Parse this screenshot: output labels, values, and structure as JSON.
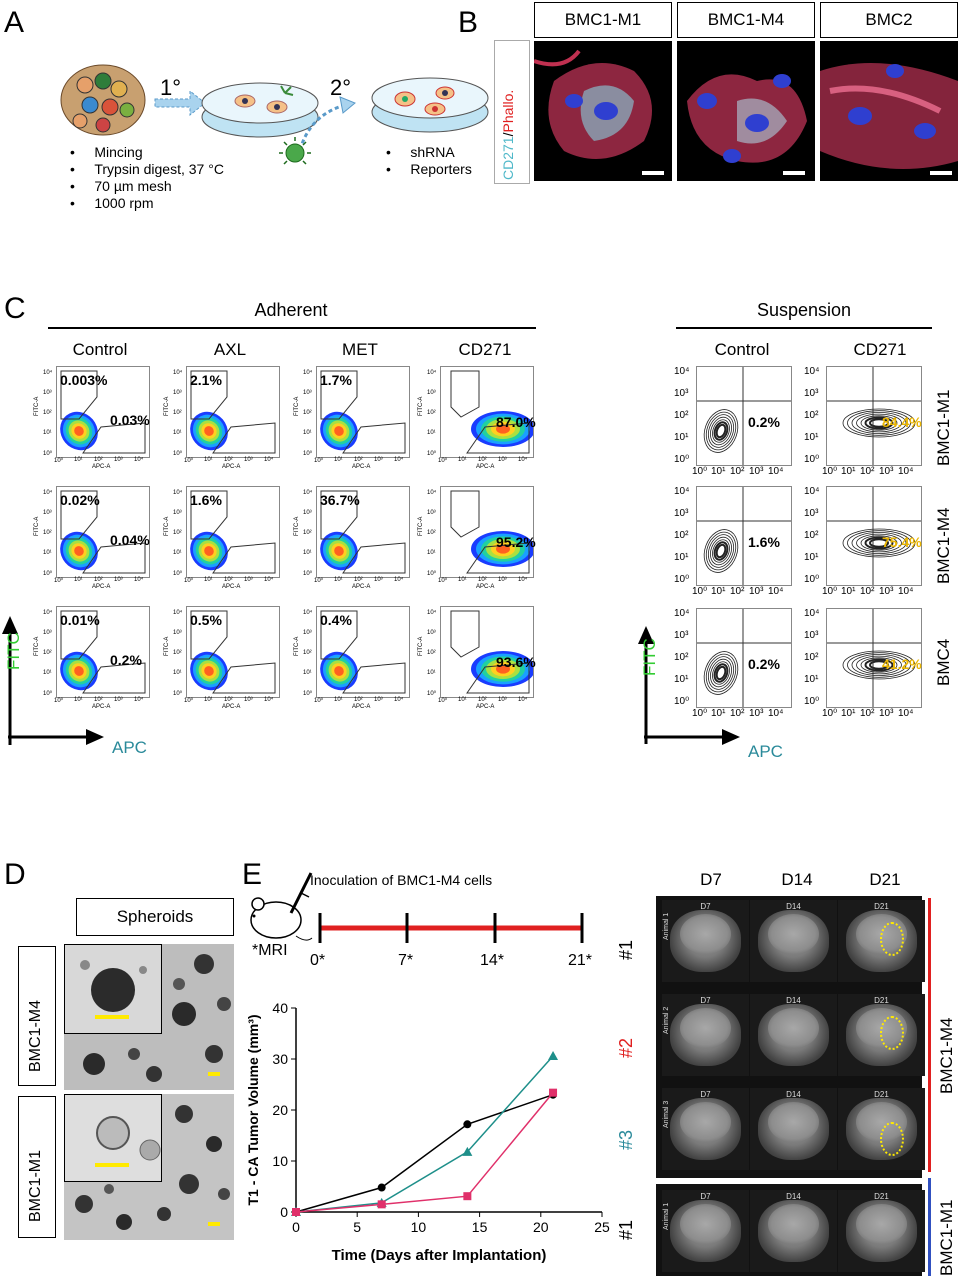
{
  "panels": {
    "A": "A",
    "B": "B",
    "C": "C",
    "D": "D",
    "E": "E"
  },
  "panelA": {
    "step1": "1°",
    "step2": "2°",
    "left_bullets": [
      "Mincing",
      "Trypsin digest, 37 °C",
      "70 µm mesh",
      "1000 rpm"
    ],
    "right_bullets": [
      "shRNA",
      "Reporters"
    ]
  },
  "panelB": {
    "lines": [
      "BMC1-M1",
      "BMC1-M4",
      "BMC2"
    ],
    "stain_cd271": "CD271",
    "stain_sep": "/",
    "stain_phallo": "Phallo."
  },
  "panelC": {
    "adherent": "Adherent",
    "suspension": "Suspension",
    "adherent_cols": [
      "Control",
      "AXL",
      "MET",
      "CD271"
    ],
    "suspension_cols": [
      "Control",
      "CD271"
    ],
    "rows": [
      "BMC1-M1",
      "BMC1-M4",
      "BMC4"
    ],
    "adherent_values": [
      [
        [
          "0.003%",
          "0.03%"
        ],
        [
          "2.1%",
          ""
        ],
        [
          "1.7%",
          ""
        ],
        [
          "",
          "87.0%"
        ]
      ],
      [
        [
          "0.02%",
          "0.04%"
        ],
        [
          "1.6%",
          ""
        ],
        [
          "36.7%",
          ""
        ],
        [
          "",
          "95.2%"
        ]
      ],
      [
        [
          "0.01%",
          "0.2%"
        ],
        [
          "0.5%",
          ""
        ],
        [
          "0.4%",
          ""
        ],
        [
          "",
          "93.6%"
        ]
      ]
    ],
    "suspension_values": [
      [
        "0.2%",
        "84.4%"
      ],
      [
        "1.6%",
        "75.4%"
      ],
      [
        "0.2%",
        "41.2%"
      ]
    ],
    "x_axis": "APC",
    "y_axis": "FITC",
    "axis_x_small": "APC-A",
    "axis_y_small": "FITC-A",
    "log_ticks": [
      "10⁰",
      "10¹",
      "10²",
      "10³",
      "10⁴"
    ],
    "colors": {
      "fitc": "#33cc33",
      "apc": "#2a8a9a",
      "highlight": "#e8b400"
    }
  },
  "panelD": {
    "title": "Spheroids",
    "rows": [
      "BMC1-M4",
      "BMC1-M1"
    ]
  },
  "panelE": {
    "inoculation": "Inoculation of BMC1-M4 cells",
    "mri_note": "*MRI",
    "timeline": [
      "0*",
      "7*",
      "14*",
      "21*"
    ],
    "mri_days": [
      "D7",
      "D14",
      "D21"
    ],
    "group_m4": "BMC1-M4",
    "group_m1": "BMC1-M1",
    "animals": [
      "#1",
      "#2",
      "#3",
      "#1"
    ],
    "animal_labels": [
      "Animal 1",
      "Animal 2",
      "Animal 3",
      "Animal 1"
    ],
    "animal_colors": [
      "#000000",
      "#e02020",
      "#2a8a9a",
      "#000000"
    ]
  },
  "chart_data": {
    "type": "line",
    "xlabel": "Time (Days after Implantation)",
    "ylabel": "T1 - CA Tumor Volume (mm³)",
    "xlim": [
      0,
      25
    ],
    "ylim": [
      0,
      40
    ],
    "xticks": [
      0,
      5,
      10,
      15,
      20,
      25
    ],
    "yticks": [
      0,
      10,
      20,
      30,
      40
    ],
    "series": [
      {
        "color": "#000000",
        "marker": "circle",
        "x": [
          0,
          7,
          14,
          21
        ],
        "y": [
          0,
          4.8,
          17.2,
          23.0
        ]
      },
      {
        "color": "#1e8f8a",
        "marker": "triangle",
        "x": [
          0,
          7,
          14,
          21
        ],
        "y": [
          0,
          1.8,
          11.8,
          30.6
        ]
      },
      {
        "color": "#e0306a",
        "marker": "square",
        "x": [
          0,
          7,
          14,
          21
        ],
        "y": [
          0,
          1.5,
          3.1,
          23.4
        ]
      }
    ]
  }
}
